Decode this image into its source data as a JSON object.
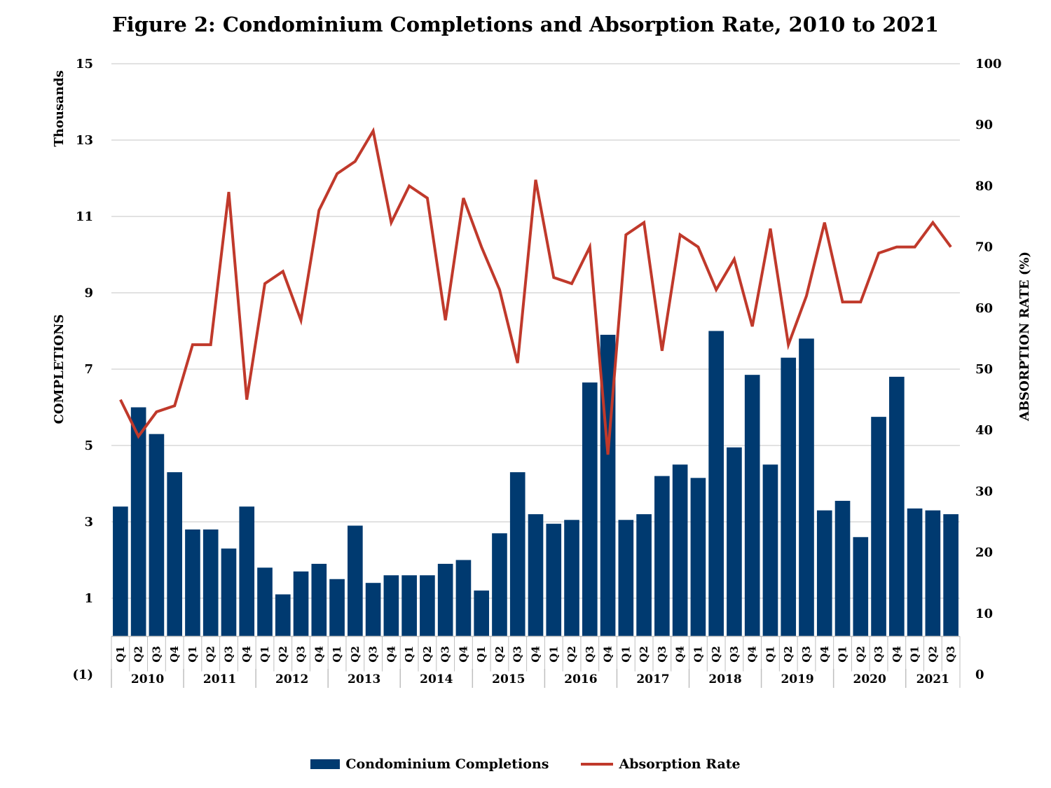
{
  "chart_data": {
    "type": "bar",
    "title": "Figure 2: Condominium Completions and Absorption Rate, 2010 to 2021",
    "left_axis": {
      "unit": "Thousands",
      "label": "COMPLETIONS",
      "ticks": [
        "15",
        "13",
        "11",
        "9",
        "7",
        "5",
        "3",
        "1",
        "(1)"
      ],
      "ylim": [
        -1,
        15
      ]
    },
    "right_axis": {
      "label": "ABSORPTION RATE (%)",
      "ticks": [
        "100",
        "90",
        "80",
        "70",
        "60",
        "50",
        "40",
        "30",
        "20",
        "10",
        "0"
      ],
      "ylim": [
        0,
        100
      ]
    },
    "years": [
      "2010",
      "2011",
      "2012",
      "2013",
      "2014",
      "2015",
      "2016",
      "2017",
      "2018",
      "2019",
      "2020",
      "2021"
    ],
    "categories": [
      "Q1",
      "Q2",
      "Q3",
      "Q4",
      "Q1",
      "Q2",
      "Q3",
      "Q4",
      "Q1",
      "Q2",
      "Q3",
      "Q4",
      "Q1",
      "Q2",
      "Q3",
      "Q4",
      "Q1",
      "Q2",
      "Q3",
      "Q4",
      "Q1",
      "Q2",
      "Q3",
      "Q4",
      "Q1",
      "Q2",
      "Q3",
      "Q4",
      "Q1",
      "Q2",
      "Q3",
      "Q4",
      "Q1",
      "Q2",
      "Q3",
      "Q4",
      "Q1",
      "Q2",
      "Q3",
      "Q4",
      "Q1",
      "Q2",
      "Q3",
      "Q4",
      "Q1",
      "Q2",
      "Q3"
    ],
    "grid": true,
    "legend_position": "bottom",
    "series": [
      {
        "name": "Condominium Completions",
        "type": "bar",
        "axis": "left",
        "color": "#003A70",
        "values": [
          3.4,
          6.0,
          5.3,
          4.3,
          2.8,
          2.8,
          2.3,
          3.4,
          1.8,
          1.1,
          1.7,
          1.9,
          1.5,
          2.9,
          1.4,
          1.6,
          1.6,
          1.6,
          1.9,
          2.0,
          1.2,
          2.7,
          4.3,
          3.2,
          2.95,
          3.05,
          6.65,
          7.9,
          3.05,
          3.2,
          4.2,
          4.5,
          4.15,
          8.0,
          4.95,
          6.85,
          4.5,
          7.3,
          7.8,
          3.3,
          3.55,
          2.6,
          5.75,
          6.8,
          3.35,
          3.3,
          3.2
        ]
      },
      {
        "name": "Absorption Rate",
        "type": "line",
        "axis": "right",
        "color": "#C0392B",
        "values": [
          45,
          39,
          43,
          44,
          54,
          54,
          79,
          45,
          64,
          66,
          58,
          76,
          82,
          84,
          89,
          74,
          80,
          78,
          58,
          78,
          70,
          63,
          51,
          81,
          65,
          64,
          70,
          36,
          72,
          74,
          53,
          72,
          70,
          63,
          68,
          57,
          73,
          54,
          62,
          74,
          61,
          61,
          69,
          70,
          70,
          74,
          70
        ]
      }
    ]
  }
}
